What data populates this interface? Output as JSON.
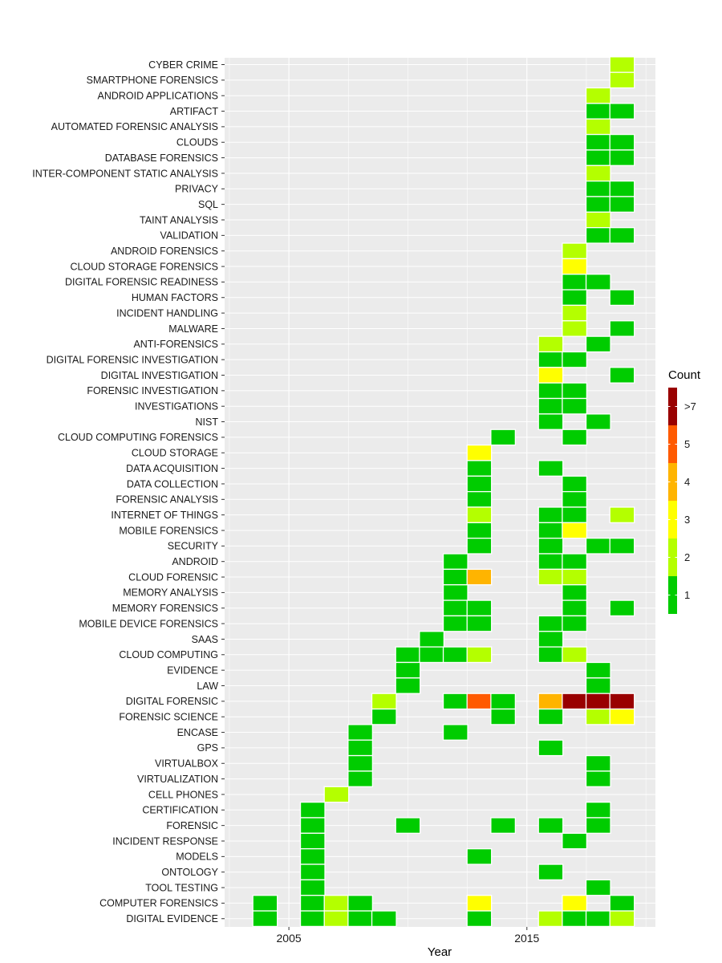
{
  "chart_data": {
    "type": "heatmap",
    "xlabel": "Year",
    "ylabel": "",
    "x_ticks": [
      2005,
      2015
    ],
    "xlim": [
      2002.3,
      2020.4
    ],
    "panel_background": "#ebebeb",
    "grid": true,
    "legend": {
      "title": "Count",
      "placement": "right",
      "entries": [
        {
          "label": ">7",
          "color": "#990000"
        },
        {
          "label": "5",
          "color": "#ff5a00"
        },
        {
          "label": "4",
          "color": "#ffb400"
        },
        {
          "label": "3",
          "color": "#ffff00"
        },
        {
          "label": "2",
          "color": "#b4ff00"
        },
        {
          "label": "1",
          "color": "#00cc00"
        }
      ]
    },
    "keywords": [
      "CYBER CRIME",
      "SMARTPHONE FORENSICS",
      "ANDROID APPLICATIONS",
      "ARTIFACT",
      "AUTOMATED FORENSIC ANALYSIS",
      "CLOUDS",
      "DATABASE FORENSICS",
      "INTER-COMPONENT STATIC ANALYSIS",
      "PRIVACY",
      "SQL",
      "TAINT ANALYSIS",
      "VALIDATION",
      "ANDROID FORENSICS",
      "CLOUD STORAGE FORENSICS",
      "DIGITAL FORENSIC READINESS",
      "HUMAN FACTORS",
      "INCIDENT HANDLING",
      "MALWARE",
      "ANTI-FORENSICS",
      "DIGITAL FORENSIC INVESTIGATION",
      "DIGITAL INVESTIGATION",
      "FORENSIC INVESTIGATION",
      "INVESTIGATIONS",
      "NIST",
      "CLOUD COMPUTING FORENSICS",
      "CLOUD STORAGE",
      "DATA ACQUISITION",
      "DATA COLLECTION",
      "FORENSIC ANALYSIS",
      "INTERNET OF THINGS",
      "MOBILE FORENSICS",
      "SECURITY",
      "ANDROID",
      "CLOUD FORENSIC",
      "MEMORY ANALYSIS",
      "MEMORY FORENSICS",
      "MOBILE DEVICE FORENSICS",
      "SAAS",
      "CLOUD COMPUTING",
      "EVIDENCE",
      "LAW",
      "DIGITAL FORENSIC",
      "FORENSIC SCIENCE",
      "ENCASE",
      "GPS",
      "VIRTUALBOX",
      "VIRTUALIZATION",
      "CELL PHONES",
      "CERTIFICATION",
      "FORENSIC",
      "INCIDENT RESPONSE",
      "MODELS",
      "ONTOLOGY",
      "TOOL TESTING",
      "COMPUTER FORENSICS",
      "DIGITAL EVIDENCE"
    ],
    "cells": [
      {
        "keyword": "CYBER CRIME",
        "year": 2019,
        "count": 2
      },
      {
        "keyword": "SMARTPHONE FORENSICS",
        "year": 2019,
        "count": 2
      },
      {
        "keyword": "ANDROID APPLICATIONS",
        "year": 2018,
        "count": 2
      },
      {
        "keyword": "ARTIFACT",
        "year": 2018,
        "count": 1
      },
      {
        "keyword": "ARTIFACT",
        "year": 2019,
        "count": 1
      },
      {
        "keyword": "AUTOMATED FORENSIC ANALYSIS",
        "year": 2018,
        "count": 2
      },
      {
        "keyword": "CLOUDS",
        "year": 2018,
        "count": 1
      },
      {
        "keyword": "CLOUDS",
        "year": 2019,
        "count": 1
      },
      {
        "keyword": "DATABASE FORENSICS",
        "year": 2018,
        "count": 1
      },
      {
        "keyword": "DATABASE FORENSICS",
        "year": 2019,
        "count": 1
      },
      {
        "keyword": "INTER-COMPONENT STATIC ANALYSIS",
        "year": 2018,
        "count": 2
      },
      {
        "keyword": "PRIVACY",
        "year": 2018,
        "count": 1
      },
      {
        "keyword": "PRIVACY",
        "year": 2019,
        "count": 1
      },
      {
        "keyword": "SQL",
        "year": 2018,
        "count": 1
      },
      {
        "keyword": "SQL",
        "year": 2019,
        "count": 1
      },
      {
        "keyword": "TAINT ANALYSIS",
        "year": 2018,
        "count": 2
      },
      {
        "keyword": "VALIDATION",
        "year": 2018,
        "count": 1
      },
      {
        "keyword": "VALIDATION",
        "year": 2019,
        "count": 1
      },
      {
        "keyword": "ANDROID FORENSICS",
        "year": 2017,
        "count": 2
      },
      {
        "keyword": "CLOUD STORAGE FORENSICS",
        "year": 2017,
        "count": 3
      },
      {
        "keyword": "DIGITAL FORENSIC READINESS",
        "year": 2017,
        "count": 1
      },
      {
        "keyword": "DIGITAL FORENSIC READINESS",
        "year": 2018,
        "count": 1
      },
      {
        "keyword": "HUMAN FACTORS",
        "year": 2017,
        "count": 1
      },
      {
        "keyword": "HUMAN FACTORS",
        "year": 2019,
        "count": 1
      },
      {
        "keyword": "INCIDENT HANDLING",
        "year": 2017,
        "count": 2
      },
      {
        "keyword": "MALWARE",
        "year": 2017,
        "count": 2
      },
      {
        "keyword": "MALWARE",
        "year": 2019,
        "count": 1
      },
      {
        "keyword": "ANTI-FORENSICS",
        "year": 2016,
        "count": 2
      },
      {
        "keyword": "ANTI-FORENSICS",
        "year": 2018,
        "count": 1
      },
      {
        "keyword": "DIGITAL FORENSIC INVESTIGATION",
        "year": 2016,
        "count": 1
      },
      {
        "keyword": "DIGITAL FORENSIC INVESTIGATION",
        "year": 2017,
        "count": 1
      },
      {
        "keyword": "DIGITAL INVESTIGATION",
        "year": 2016,
        "count": 3
      },
      {
        "keyword": "DIGITAL INVESTIGATION",
        "year": 2019,
        "count": 1
      },
      {
        "keyword": "FORENSIC INVESTIGATION",
        "year": 2016,
        "count": 1
      },
      {
        "keyword": "FORENSIC INVESTIGATION",
        "year": 2017,
        "count": 1
      },
      {
        "keyword": "INVESTIGATIONS",
        "year": 2016,
        "count": 1
      },
      {
        "keyword": "INVESTIGATIONS",
        "year": 2017,
        "count": 1
      },
      {
        "keyword": "NIST",
        "year": 2016,
        "count": 1
      },
      {
        "keyword": "NIST",
        "year": 2018,
        "count": 1
      },
      {
        "keyword": "CLOUD COMPUTING FORENSICS",
        "year": 2014,
        "count": 1
      },
      {
        "keyword": "CLOUD COMPUTING FORENSICS",
        "year": 2017,
        "count": 1
      },
      {
        "keyword": "CLOUD STORAGE",
        "year": 2013,
        "count": 3
      },
      {
        "keyword": "DATA ACQUISITION",
        "year": 2013,
        "count": 1
      },
      {
        "keyword": "DATA ACQUISITION",
        "year": 2016,
        "count": 1
      },
      {
        "keyword": "DATA COLLECTION",
        "year": 2013,
        "count": 1
      },
      {
        "keyword": "DATA COLLECTION",
        "year": 2017,
        "count": 1
      },
      {
        "keyword": "FORENSIC ANALYSIS",
        "year": 2013,
        "count": 1
      },
      {
        "keyword": "FORENSIC ANALYSIS",
        "year": 2017,
        "count": 1
      },
      {
        "keyword": "INTERNET OF THINGS",
        "year": 2013,
        "count": 2
      },
      {
        "keyword": "INTERNET OF THINGS",
        "year": 2016,
        "count": 1
      },
      {
        "keyword": "INTERNET OF THINGS",
        "year": 2017,
        "count": 1
      },
      {
        "keyword": "INTERNET OF THINGS",
        "year": 2019,
        "count": 2
      },
      {
        "keyword": "MOBILE FORENSICS",
        "year": 2013,
        "count": 1
      },
      {
        "keyword": "MOBILE FORENSICS",
        "year": 2016,
        "count": 1
      },
      {
        "keyword": "MOBILE FORENSICS",
        "year": 2017,
        "count": 3
      },
      {
        "keyword": "SECURITY",
        "year": 2013,
        "count": 1
      },
      {
        "keyword": "SECURITY",
        "year": 2016,
        "count": 1
      },
      {
        "keyword": "SECURITY",
        "year": 2018,
        "count": 1
      },
      {
        "keyword": "SECURITY",
        "year": 2019,
        "count": 1
      },
      {
        "keyword": "ANDROID",
        "year": 2012,
        "count": 1
      },
      {
        "keyword": "ANDROID",
        "year": 2016,
        "count": 1
      },
      {
        "keyword": "ANDROID",
        "year": 2017,
        "count": 1
      },
      {
        "keyword": "CLOUD FORENSIC",
        "year": 2012,
        "count": 1
      },
      {
        "keyword": "CLOUD FORENSIC",
        "year": 2013,
        "count": 4
      },
      {
        "keyword": "CLOUD FORENSIC",
        "year": 2016,
        "count": 2
      },
      {
        "keyword": "CLOUD FORENSIC",
        "year": 2017,
        "count": 2
      },
      {
        "keyword": "MEMORY ANALYSIS",
        "year": 2012,
        "count": 1
      },
      {
        "keyword": "MEMORY ANALYSIS",
        "year": 2017,
        "count": 1
      },
      {
        "keyword": "MEMORY FORENSICS",
        "year": 2012,
        "count": 1
      },
      {
        "keyword": "MEMORY FORENSICS",
        "year": 2013,
        "count": 1
      },
      {
        "keyword": "MEMORY FORENSICS",
        "year": 2017,
        "count": 1
      },
      {
        "keyword": "MEMORY FORENSICS",
        "year": 2019,
        "count": 1
      },
      {
        "keyword": "MOBILE DEVICE FORENSICS",
        "year": 2012,
        "count": 1
      },
      {
        "keyword": "MOBILE DEVICE FORENSICS",
        "year": 2013,
        "count": 1
      },
      {
        "keyword": "MOBILE DEVICE FORENSICS",
        "year": 2016,
        "count": 1
      },
      {
        "keyword": "MOBILE DEVICE FORENSICS",
        "year": 2017,
        "count": 1
      },
      {
        "keyword": "SAAS",
        "year": 2011,
        "count": 1
      },
      {
        "keyword": "SAAS",
        "year": 2016,
        "count": 1
      },
      {
        "keyword": "CLOUD COMPUTING",
        "year": 2010,
        "count": 1
      },
      {
        "keyword": "CLOUD COMPUTING",
        "year": 2011,
        "count": 1
      },
      {
        "keyword": "CLOUD COMPUTING",
        "year": 2012,
        "count": 1
      },
      {
        "keyword": "CLOUD COMPUTING",
        "year": 2013,
        "count": 2
      },
      {
        "keyword": "CLOUD COMPUTING",
        "year": 2016,
        "count": 1
      },
      {
        "keyword": "CLOUD COMPUTING",
        "year": 2017,
        "count": 2
      },
      {
        "keyword": "EVIDENCE",
        "year": 2010,
        "count": 1
      },
      {
        "keyword": "EVIDENCE",
        "year": 2018,
        "count": 1
      },
      {
        "keyword": "LAW",
        "year": 2010,
        "count": 1
      },
      {
        "keyword": "LAW",
        "year": 2018,
        "count": 1
      },
      {
        "keyword": "DIGITAL FORENSIC",
        "year": 2009,
        "count": 2
      },
      {
        "keyword": "DIGITAL FORENSIC",
        "year": 2012,
        "count": 1
      },
      {
        "keyword": "DIGITAL FORENSIC",
        "year": 2013,
        "count": 5
      },
      {
        "keyword": "DIGITAL FORENSIC",
        "year": 2014,
        "count": 1
      },
      {
        "keyword": "DIGITAL FORENSIC",
        "year": 2016,
        "count": 4
      },
      {
        "keyword": "DIGITAL FORENSIC",
        "year": 2017,
        "count": ">7"
      },
      {
        "keyword": "DIGITAL FORENSIC",
        "year": 2018,
        "count": ">7"
      },
      {
        "keyword": "DIGITAL FORENSIC",
        "year": 2019,
        "count": ">7"
      },
      {
        "keyword": "FORENSIC SCIENCE",
        "year": 2009,
        "count": 1
      },
      {
        "keyword": "FORENSIC SCIENCE",
        "year": 2014,
        "count": 1
      },
      {
        "keyword": "FORENSIC SCIENCE",
        "year": 2016,
        "count": 1
      },
      {
        "keyword": "FORENSIC SCIENCE",
        "year": 2018,
        "count": 2
      },
      {
        "keyword": "FORENSIC SCIENCE",
        "year": 2019,
        "count": 3
      },
      {
        "keyword": "ENCASE",
        "year": 2008,
        "count": 1
      },
      {
        "keyword": "ENCASE",
        "year": 2012,
        "count": 1
      },
      {
        "keyword": "GPS",
        "year": 2008,
        "count": 1
      },
      {
        "keyword": "GPS",
        "year": 2016,
        "count": 1
      },
      {
        "keyword": "VIRTUALBOX",
        "year": 2008,
        "count": 1
      },
      {
        "keyword": "VIRTUALBOX",
        "year": 2018,
        "count": 1
      },
      {
        "keyword": "VIRTUALIZATION",
        "year": 2008,
        "count": 1
      },
      {
        "keyword": "VIRTUALIZATION",
        "year": 2018,
        "count": 1
      },
      {
        "keyword": "CELL PHONES",
        "year": 2007,
        "count": 2
      },
      {
        "keyword": "CERTIFICATION",
        "year": 2006,
        "count": 1
      },
      {
        "keyword": "CERTIFICATION",
        "year": 2018,
        "count": 1
      },
      {
        "keyword": "FORENSIC",
        "year": 2006,
        "count": 1
      },
      {
        "keyword": "FORENSIC",
        "year": 2010,
        "count": 1
      },
      {
        "keyword": "FORENSIC",
        "year": 2014,
        "count": 1
      },
      {
        "keyword": "FORENSIC",
        "year": 2016,
        "count": 1
      },
      {
        "keyword": "FORENSIC",
        "year": 2018,
        "count": 1
      },
      {
        "keyword": "INCIDENT RESPONSE",
        "year": 2006,
        "count": 1
      },
      {
        "keyword": "INCIDENT RESPONSE",
        "year": 2017,
        "count": 1
      },
      {
        "keyword": "MODELS",
        "year": 2006,
        "count": 1
      },
      {
        "keyword": "MODELS",
        "year": 2013,
        "count": 1
      },
      {
        "keyword": "ONTOLOGY",
        "year": 2006,
        "count": 1
      },
      {
        "keyword": "ONTOLOGY",
        "year": 2016,
        "count": 1
      },
      {
        "keyword": "TOOL TESTING",
        "year": 2006,
        "count": 1
      },
      {
        "keyword": "TOOL TESTING",
        "year": 2018,
        "count": 1
      },
      {
        "keyword": "COMPUTER FORENSICS",
        "year": 2004,
        "count": 1
      },
      {
        "keyword": "COMPUTER FORENSICS",
        "year": 2006,
        "count": 1
      },
      {
        "keyword": "COMPUTER FORENSICS",
        "year": 2007,
        "count": 2
      },
      {
        "keyword": "COMPUTER FORENSICS",
        "year": 2008,
        "count": 1
      },
      {
        "keyword": "COMPUTER FORENSICS",
        "year": 2013,
        "count": 3
      },
      {
        "keyword": "COMPUTER FORENSICS",
        "year": 2017,
        "count": 3
      },
      {
        "keyword": "COMPUTER FORENSICS",
        "year": 2019,
        "count": 1
      },
      {
        "keyword": "DIGITAL EVIDENCE",
        "year": 2004,
        "count": 1
      },
      {
        "keyword": "DIGITAL EVIDENCE",
        "year": 2006,
        "count": 1
      },
      {
        "keyword": "DIGITAL EVIDENCE",
        "year": 2007,
        "count": 2
      },
      {
        "keyword": "DIGITAL EVIDENCE",
        "year": 2008,
        "count": 1
      },
      {
        "keyword": "DIGITAL EVIDENCE",
        "year": 2009,
        "count": 1
      },
      {
        "keyword": "DIGITAL EVIDENCE",
        "year": 2013,
        "count": 1
      },
      {
        "keyword": "DIGITAL EVIDENCE",
        "year": 2016,
        "count": 2
      },
      {
        "keyword": "DIGITAL EVIDENCE",
        "year": 2017,
        "count": 1
      },
      {
        "keyword": "DIGITAL EVIDENCE",
        "year": 2018,
        "count": 1
      },
      {
        "keyword": "DIGITAL EVIDENCE",
        "year": 2019,
        "count": 2
      }
    ]
  }
}
